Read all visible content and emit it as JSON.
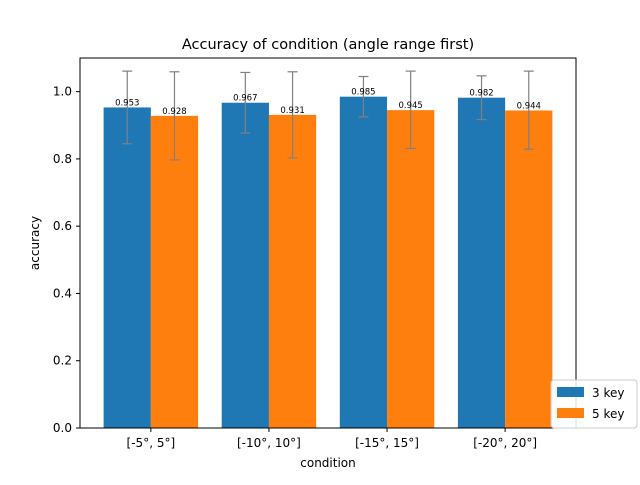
{
  "chart_data": {
    "type": "bar",
    "title": "Accuracy of condition (angle range first)",
    "xlabel": "condition",
    "ylabel": "accuracy",
    "ylim": [
      0,
      1.1
    ],
    "yticks": [
      "0.0",
      "0.2",
      "0.4",
      "0.6",
      "0.8",
      "1.0"
    ],
    "categories": [
      "[-5°, 5°]",
      "[-10°, 10°]",
      "[-15°, 15°]",
      "[-20°, 20°]"
    ],
    "series": [
      {
        "name": "3 key",
        "color": "#1f77b4",
        "values": [
          0.953,
          0.967,
          0.985,
          0.982
        ],
        "labels": [
          "0.953",
          "0.967",
          "0.985",
          "0.982"
        ],
        "err_low": [
          0.845,
          0.877,
          0.925,
          0.917
        ],
        "err_high": [
          1.061,
          1.057,
          1.045,
          1.047
        ]
      },
      {
        "name": "5 key",
        "color": "#ff7f0e",
        "values": [
          0.928,
          0.931,
          0.945,
          0.944
        ],
        "labels": [
          "0.928",
          "0.931",
          "0.945",
          "0.944"
        ],
        "err_low": [
          0.797,
          0.803,
          0.831,
          0.829
        ],
        "err_high": [
          1.059,
          1.059,
          1.061,
          1.061
        ]
      }
    ],
    "grid": false,
    "legend_position": "bottom-right",
    "error_bar_color": "#808080"
  }
}
